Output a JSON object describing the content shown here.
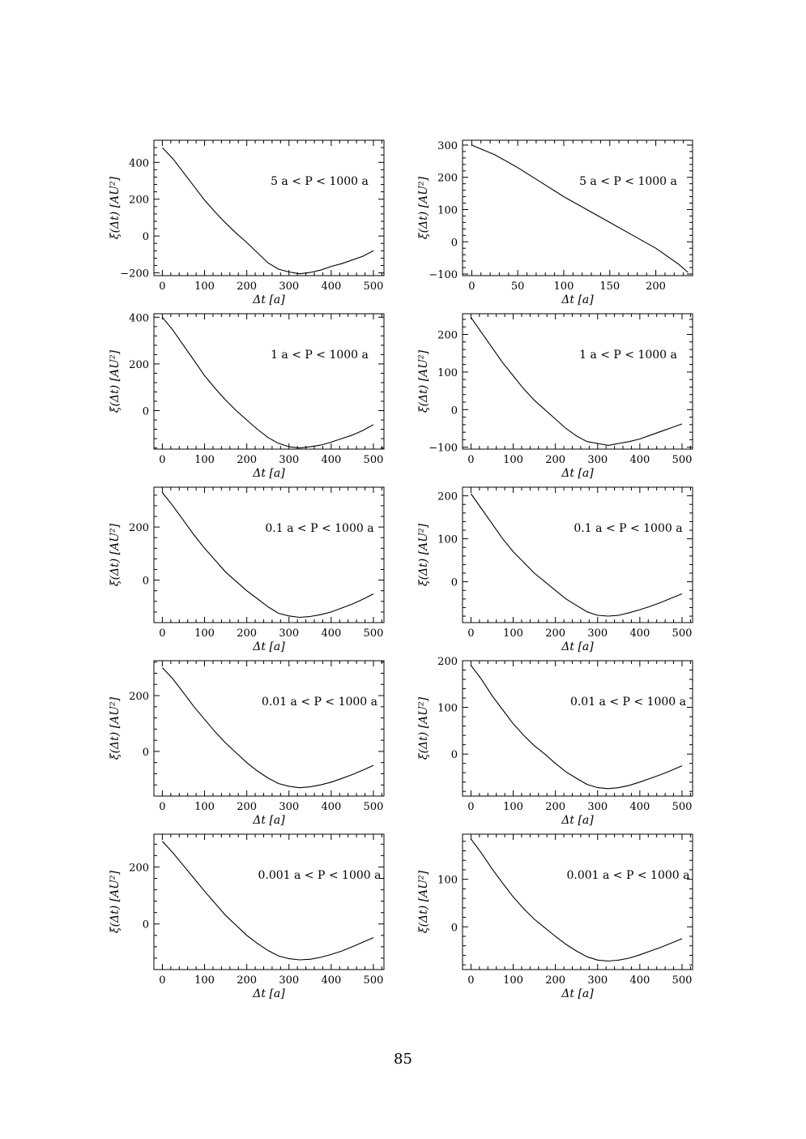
{
  "page": {
    "number": "85"
  },
  "chart_data": [
    {
      "type": "line",
      "label": "5 a < P < 1000 a",
      "xlabel": "Δt [a]",
      "ylabel": "ξ(Δt) [AU²]",
      "xlim": [
        -20,
        525
      ],
      "ylim": [
        -215,
        520
      ],
      "xticks": [
        0,
        100,
        200,
        300,
        400,
        500
      ],
      "yticks": [
        -200,
        0,
        200,
        400
      ],
      "x": [
        0,
        25,
        50,
        75,
        100,
        125,
        150,
        175,
        200,
        225,
        250,
        275,
        300,
        325,
        350,
        375,
        400,
        425,
        450,
        475,
        500
      ],
      "y": [
        480,
        420,
        345,
        270,
        195,
        130,
        70,
        15,
        -35,
        -90,
        -145,
        -180,
        -195,
        -205,
        -198,
        -185,
        -165,
        -150,
        -130,
        -110,
        -80
      ]
    },
    {
      "type": "line",
      "label": "5 a < P < 1000 a",
      "xlabel": "Δt [a]",
      "ylabel": "ξ(Δt) [AU²]",
      "xlim": [
        -10,
        240
      ],
      "ylim": [
        -105,
        315
      ],
      "xticks": [
        0,
        50,
        100,
        150,
        200
      ],
      "yticks": [
        -100,
        0,
        100,
        200,
        300
      ],
      "x": [
        0,
        25,
        50,
        75,
        100,
        125,
        150,
        175,
        200,
        225,
        235
      ],
      "y": [
        300,
        270,
        230,
        185,
        140,
        100,
        60,
        20,
        -20,
        -70,
        -95
      ]
    },
    {
      "type": "line",
      "label": "1 a < P < 1000 a",
      "xlabel": "Δt [a]",
      "ylabel": "ξ(Δt) [AU²]",
      "xlim": [
        -20,
        525
      ],
      "ylim": [
        -165,
        415
      ],
      "xticks": [
        0,
        100,
        200,
        300,
        400,
        500
      ],
      "yticks": [
        0,
        200,
        400
      ],
      "x": [
        0,
        25,
        50,
        75,
        100,
        125,
        150,
        175,
        200,
        225,
        250,
        275,
        300,
        325,
        350,
        375,
        400,
        425,
        450,
        475,
        500
      ],
      "y": [
        400,
        345,
        280,
        215,
        150,
        95,
        45,
        0,
        -40,
        -80,
        -115,
        -140,
        -155,
        -160,
        -155,
        -148,
        -135,
        -120,
        -105,
        -85,
        -60
      ]
    },
    {
      "type": "line",
      "label": "1 a < P < 1000 a",
      "xlabel": "Δt [a]",
      "ylabel": "ξ(Δt) [AU²]",
      "xlim": [
        -20,
        525
      ],
      "ylim": [
        -105,
        255
      ],
      "xticks": [
        0,
        100,
        200,
        300,
        400,
        500
      ],
      "yticks": [
        -100,
        0,
        100,
        200
      ],
      "x": [
        0,
        25,
        50,
        75,
        100,
        125,
        150,
        175,
        200,
        225,
        250,
        275,
        300,
        325,
        350,
        375,
        400,
        425,
        450,
        475,
        500
      ],
      "y": [
        245,
        205,
        165,
        125,
        90,
        55,
        25,
        0,
        -25,
        -50,
        -70,
        -85,
        -90,
        -95,
        -90,
        -85,
        -78,
        -68,
        -58,
        -48,
        -38
      ]
    },
    {
      "type": "line",
      "label": "0.1 a < P < 1000 a",
      "xlabel": "Δt [a]",
      "ylabel": "ξ(Δt) [AU²]",
      "xlim": [
        -20,
        525
      ],
      "ylim": [
        -160,
        350
      ],
      "xticks": [
        0,
        100,
        200,
        300,
        400,
        500
      ],
      "yticks": [
        0,
        200
      ],
      "x": [
        0,
        25,
        50,
        75,
        100,
        125,
        150,
        175,
        200,
        225,
        250,
        275,
        300,
        325,
        350,
        375,
        400,
        425,
        450,
        475,
        500
      ],
      "y": [
        330,
        280,
        225,
        170,
        120,
        75,
        30,
        -5,
        -40,
        -70,
        -100,
        -125,
        -135,
        -140,
        -137,
        -130,
        -120,
        -105,
        -90,
        -72,
        -52
      ]
    },
    {
      "type": "line",
      "label": "0.1 a < P < 1000 a",
      "xlabel": "Δt [a]",
      "ylabel": "ξ(Δt) [AU²]",
      "xlim": [
        -20,
        525
      ],
      "ylim": [
        -95,
        220
      ],
      "xticks": [
        0,
        100,
        200,
        300,
        400,
        500
      ],
      "yticks": [
        0,
        100,
        200
      ],
      "x": [
        0,
        25,
        50,
        75,
        100,
        125,
        150,
        175,
        200,
        225,
        250,
        275,
        300,
        325,
        350,
        375,
        400,
        425,
        450,
        475,
        500
      ],
      "y": [
        205,
        170,
        135,
        100,
        70,
        45,
        20,
        0,
        -20,
        -40,
        -55,
        -70,
        -78,
        -80,
        -78,
        -72,
        -65,
        -57,
        -48,
        -38,
        -28
      ]
    },
    {
      "type": "line",
      "label": "0.01 a < P < 1000 a",
      "xlabel": "Δt [a]",
      "ylabel": "ξ(Δt) [AU²]",
      "xlim": [
        -20,
        525
      ],
      "ylim": [
        -160,
        325
      ],
      "xticks": [
        0,
        100,
        200,
        300,
        400,
        500
      ],
      "yticks": [
        0,
        200
      ],
      "x": [
        0,
        25,
        50,
        75,
        100,
        125,
        150,
        175,
        200,
        225,
        250,
        275,
        300,
        325,
        350,
        375,
        400,
        425,
        450,
        475,
        500
      ],
      "y": [
        300,
        260,
        210,
        160,
        115,
        70,
        30,
        -5,
        -40,
        -70,
        -95,
        -115,
        -125,
        -130,
        -127,
        -120,
        -110,
        -97,
        -83,
        -67,
        -50
      ]
    },
    {
      "type": "line",
      "label": "0.01 a < P < 1000 a",
      "xlabel": "Δt [a]",
      "ylabel": "ξ(Δt) [AU²]",
      "xlim": [
        -20,
        525
      ],
      "ylim": [
        -90,
        200
      ],
      "xticks": [
        0,
        100,
        200,
        300,
        400,
        500
      ],
      "yticks": [
        0,
        100,
        200
      ],
      "x": [
        0,
        25,
        50,
        75,
        100,
        125,
        150,
        175,
        200,
        225,
        250,
        275,
        300,
        325,
        350,
        375,
        400,
        425,
        450,
        475,
        500
      ],
      "y": [
        190,
        160,
        125,
        95,
        65,
        40,
        18,
        0,
        -20,
        -38,
        -52,
        -65,
        -72,
        -74,
        -72,
        -67,
        -60,
        -52,
        -44,
        -35,
        -25
      ]
    },
    {
      "type": "line",
      "label": "0.001 a < P < 1000 a",
      "xlabel": "Δt [a]",
      "ylabel": "ξ(Δt) [AU²]",
      "xlim": [
        -20,
        525
      ],
      "ylim": [
        -160,
        315
      ],
      "xticks": [
        0,
        100,
        200,
        300,
        400,
        500
      ],
      "yticks": [
        0,
        200
      ],
      "x": [
        0,
        25,
        50,
        75,
        100,
        125,
        150,
        175,
        200,
        225,
        250,
        275,
        300,
        325,
        350,
        375,
        400,
        425,
        450,
        475,
        500
      ],
      "y": [
        290,
        250,
        205,
        160,
        115,
        72,
        30,
        -5,
        -40,
        -68,
        -93,
        -112,
        -122,
        -126,
        -124,
        -117,
        -107,
        -95,
        -80,
        -64,
        -48
      ]
    },
    {
      "type": "line",
      "label": "0.001 a < P < 1000 a",
      "xlabel": "Δt [a]",
      "ylabel": "ξ(Δt) [AU²]",
      "xlim": [
        -20,
        525
      ],
      "ylim": [
        -90,
        195
      ],
      "xticks": [
        0,
        100,
        200,
        300,
        400,
        500
      ],
      "yticks": [
        0,
        100
      ],
      "x": [
        0,
        25,
        50,
        75,
        100,
        125,
        150,
        175,
        200,
        225,
        250,
        275,
        300,
        325,
        350,
        375,
        400,
        425,
        450,
        475,
        500
      ],
      "y": [
        185,
        155,
        122,
        92,
        63,
        38,
        16,
        -2,
        -20,
        -37,
        -51,
        -63,
        -70,
        -72,
        -70,
        -66,
        -59,
        -51,
        -43,
        -34,
        -25
      ]
    }
  ]
}
